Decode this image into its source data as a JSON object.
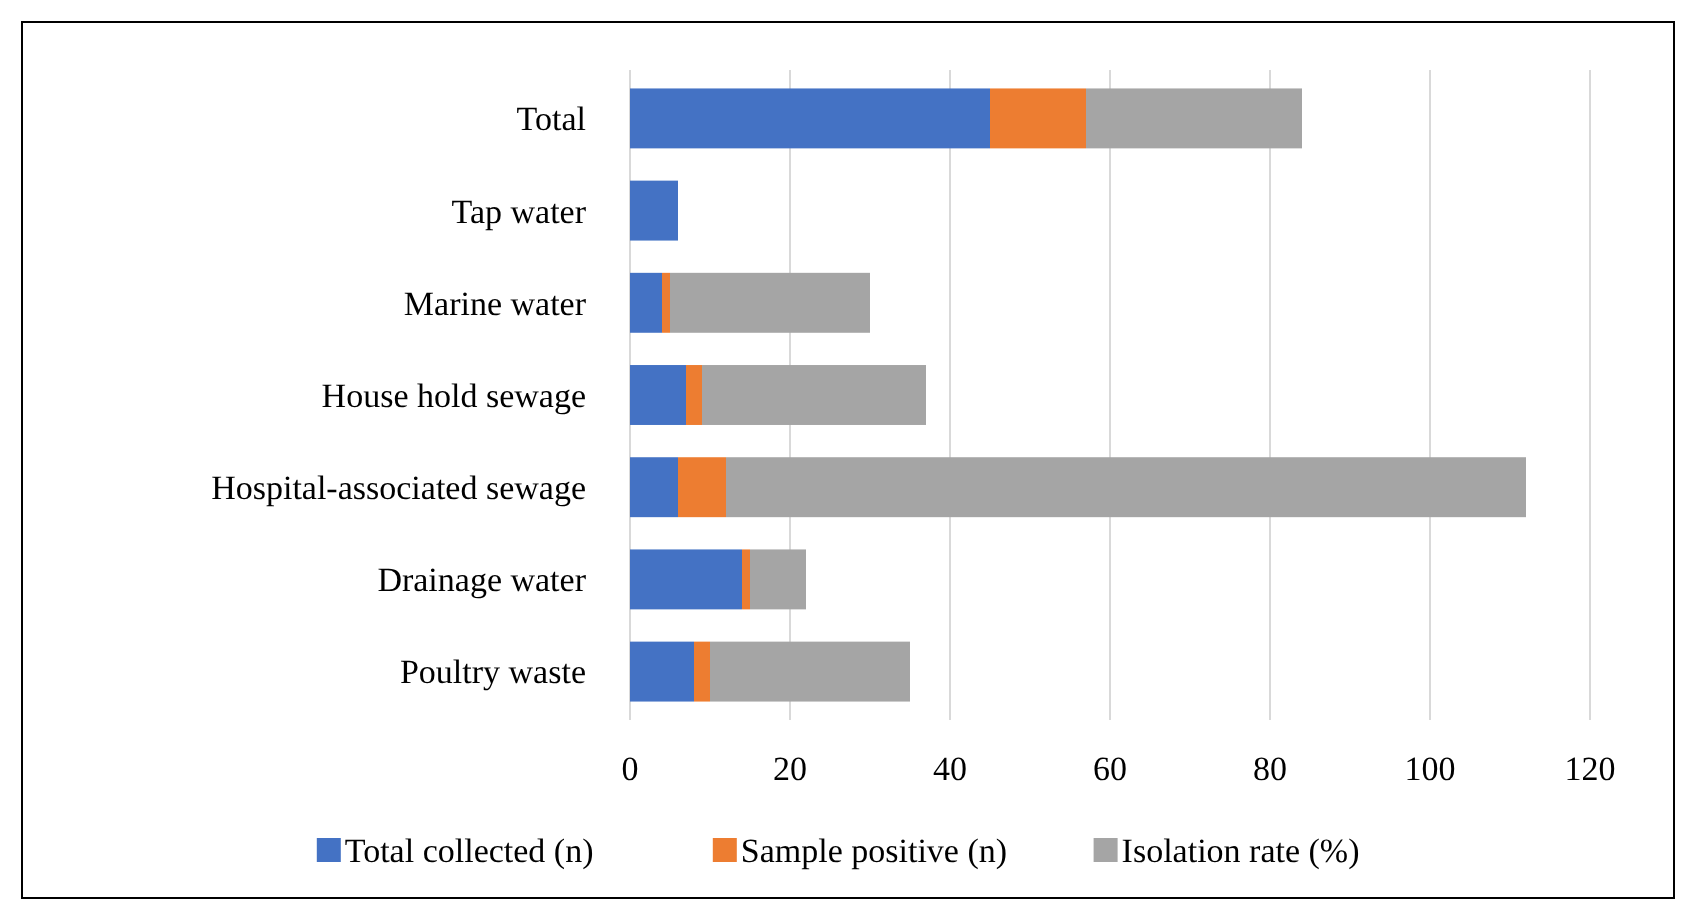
{
  "chart_data": {
    "type": "bar",
    "orientation": "horizontal",
    "stacked": true,
    "categories": [
      "Total",
      "Tap water",
      "Marine water",
      "House hold sewage",
      "Hospital-associated sewage",
      "Drainage water",
      "Poultry waste"
    ],
    "series": [
      {
        "name": "Total collected  (n)",
        "color": "#4472c4",
        "values": [
          45,
          6,
          4,
          7,
          6,
          14,
          8
        ]
      },
      {
        "name": "Sample positive (n)",
        "color": "#ed7d31",
        "values": [
          12,
          0,
          1,
          2,
          6,
          1,
          2
        ]
      },
      {
        "name": "Isolation rate (%)",
        "color": "#a5a5a5",
        "values": [
          27,
          0,
          25,
          28,
          100,
          7,
          25
        ]
      }
    ],
    "xlim": [
      0,
      120
    ],
    "xticks": [
      0,
      20,
      40,
      60,
      80,
      100,
      120
    ],
    "grid": "x",
    "legend": "bottom"
  }
}
